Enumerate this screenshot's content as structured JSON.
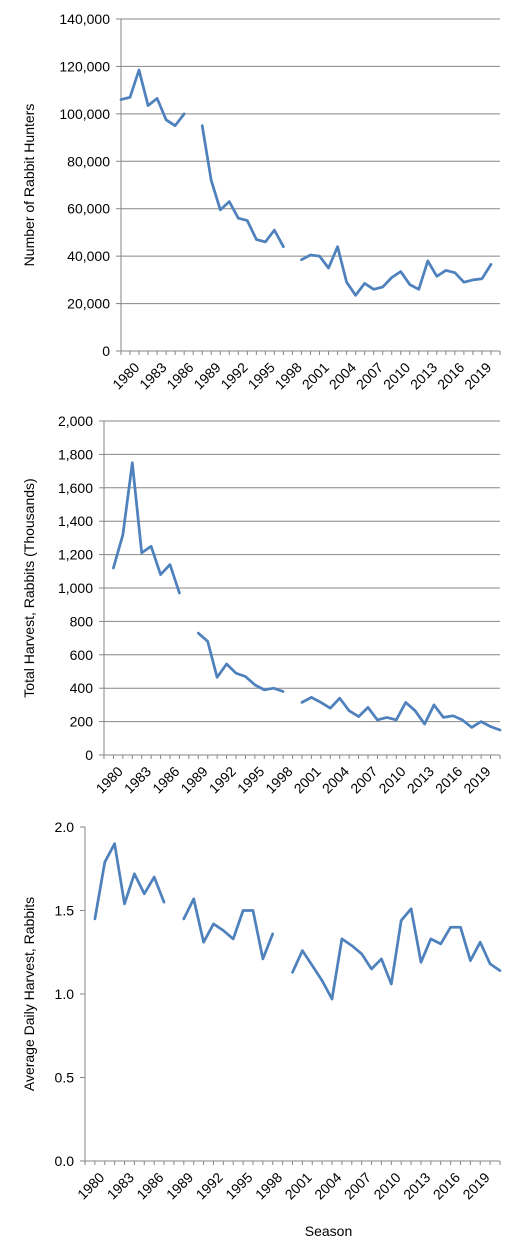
{
  "chart_data": [
    {
      "type": "line",
      "title": "",
      "xlabel": "",
      "ylabel": "Number of Rabbit Hunters",
      "ylim": [
        0,
        140000
      ],
      "yticks": [
        0,
        20000,
        40000,
        60000,
        80000,
        100000,
        120000,
        140000
      ],
      "ytick_labels": [
        "0",
        "20,000",
        "40,000",
        "60,000",
        "80,000",
        "100,000",
        "120,000",
        "140,000"
      ],
      "xtick_labels": [
        "1980",
        "1983",
        "1986",
        "1989",
        "1992",
        "1995",
        "1998",
        "2001",
        "2004",
        "2007",
        "2010",
        "2013",
        "2016",
        "2019"
      ],
      "grid": true,
      "legend": "none",
      "x_range": [
        1979,
        2021
      ],
      "series": [
        {
          "color": "#4F81BD",
          "x": [
            1979,
            1980,
            1981,
            1982,
            1983,
            1984,
            1985,
            1986,
            1987,
            1988,
            1989,
            1990,
            1991,
            1992,
            1993,
            1994,
            1995,
            1996,
            1997,
            1998,
            1999,
            2000,
            2001,
            2002,
            2003,
            2004,
            2005,
            2006,
            2007,
            2008,
            2009,
            2010,
            2011,
            2012,
            2013,
            2014,
            2015,
            2016,
            2017,
            2018,
            2019,
            2020,
            2021
          ],
          "values": [
            106000,
            107000,
            118500,
            103500,
            106500,
            97500,
            95000,
            100000,
            null,
            95000,
            72000,
            59500,
            63000,
            56000,
            55000,
            47000,
            46000,
            51000,
            44000,
            null,
            38500,
            40500,
            40000,
            35000,
            44000,
            29000,
            23500,
            28500,
            26000,
            27000,
            31000,
            33500,
            28000,
            26000,
            38000,
            31500,
            34000,
            33000,
            29000,
            30000,
            30500,
            36500,
            null
          ]
        }
      ]
    },
    {
      "type": "line",
      "title": "",
      "xlabel": "",
      "ylabel": "Total Harvest, Rabbits (Thousands)",
      "ylim": [
        0,
        2000
      ],
      "yticks": [
        0,
        200,
        400,
        600,
        800,
        1000,
        1200,
        1400,
        1600,
        1800,
        2000
      ],
      "ytick_labels": [
        "0",
        "200",
        "400",
        "600",
        "800",
        "1,000",
        "1,200",
        "1,400",
        "1,600",
        "1,800",
        "2,000"
      ],
      "xtick_labels": [
        "1980",
        "1983",
        "1986",
        "1989",
        "1992",
        "1995",
        "1998",
        "2001",
        "2004",
        "2007",
        "2010",
        "2013",
        "2016",
        "2019"
      ],
      "grid": true,
      "legend": "none",
      "x_range": [
        1979,
        2021
      ],
      "series": [
        {
          "color": "#4F81BD",
          "x": [
            1979,
            1980,
            1981,
            1982,
            1983,
            1984,
            1985,
            1986,
            1987,
            1988,
            1989,
            1990,
            1991,
            1992,
            1993,
            1994,
            1995,
            1996,
            1997,
            1998,
            1999,
            2000,
            2001,
            2002,
            2003,
            2004,
            2005,
            2006,
            2007,
            2008,
            2009,
            2010,
            2011,
            2012,
            2013,
            2014,
            2015,
            2016,
            2017,
            2018,
            2019,
            2020,
            2021
          ],
          "values": [
            null,
            1120,
            1320,
            1750,
            1210,
            1250,
            1080,
            1140,
            970,
            null,
            730,
            680,
            465,
            545,
            490,
            470,
            420,
            390,
            400,
            380,
            null,
            315,
            345,
            315,
            280,
            340,
            265,
            230,
            285,
            210,
            225,
            210,
            315,
            265,
            185,
            300,
            225,
            235,
            210,
            165,
            200,
            170,
            150
          ]
        }
      ]
    },
    {
      "type": "line",
      "title": "",
      "xlabel": "Season",
      "ylabel": "Average Daily Harvest, Rabbits",
      "ylim": [
        0.0,
        2.0
      ],
      "yticks": [
        0.0,
        0.5,
        1.0,
        1.5,
        2.0
      ],
      "ytick_labels": [
        "0.0",
        "0.5",
        "1.0",
        "1.5",
        "2.0"
      ],
      "xtick_labels": [
        "1980",
        "1983",
        "1986",
        "1989",
        "1992",
        "1995",
        "1998",
        "2001",
        "2004",
        "2007",
        "2010",
        "2013",
        "2016",
        "2019"
      ],
      "grid": false,
      "legend": "none",
      "x_range": [
        1979,
        2021
      ],
      "series": [
        {
          "color": "#4F81BD",
          "x": [
            1979,
            1980,
            1981,
            1982,
            1983,
            1984,
            1985,
            1986,
            1987,
            1988,
            1989,
            1990,
            1991,
            1992,
            1993,
            1994,
            1995,
            1996,
            1997,
            1998,
            1999,
            2000,
            2001,
            2002,
            2003,
            2004,
            2005,
            2006,
            2007,
            2008,
            2009,
            2010,
            2011,
            2012,
            2013,
            2014,
            2015,
            2016,
            2017,
            2018,
            2019,
            2020,
            2021
          ],
          "values": [
            null,
            1.45,
            1.79,
            1.9,
            1.54,
            1.72,
            1.6,
            1.7,
            1.55,
            null,
            1.45,
            1.57,
            1.31,
            1.42,
            1.38,
            1.33,
            1.5,
            1.5,
            1.21,
            1.36,
            null,
            1.13,
            1.26,
            1.17,
            1.08,
            0.97,
            1.33,
            1.29,
            1.24,
            1.15,
            1.21,
            1.06,
            1.44,
            1.51,
            1.19,
            1.33,
            1.3,
            1.4,
            1.4,
            1.2,
            1.31,
            1.18,
            1.14
          ]
        }
      ]
    }
  ]
}
